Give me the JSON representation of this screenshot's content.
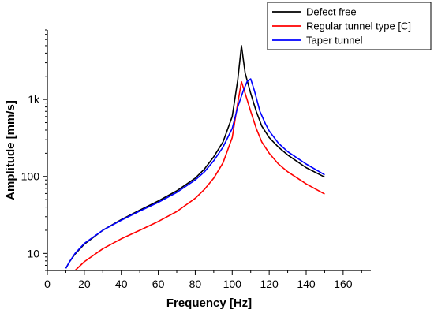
{
  "chart_data": {
    "type": "line",
    "xlabel": "Frequency [Hz]",
    "ylabel": "Amplitude [mm/s]",
    "xlim": [
      0,
      175
    ],
    "ylim": [
      6,
      8000
    ],
    "y_scale": "log",
    "grid": false,
    "legend_position": "top-right",
    "x_ticks": [
      0,
      20,
      40,
      60,
      80,
      100,
      120,
      140,
      160
    ],
    "x_tick_labels": [
      "0",
      "20",
      "40",
      "60",
      "80",
      "100",
      "120",
      "140",
      "160"
    ],
    "y_ticks": [
      10,
      100,
      1000
    ],
    "y_tick_labels": [
      "10",
      "100",
      "1k"
    ],
    "series": [
      {
        "name": "Defect free",
        "color": "#000000",
        "points": [
          [
            10,
            6.4
          ],
          [
            12,
            7.8
          ],
          [
            15,
            9.8
          ],
          [
            20,
            13.2
          ],
          [
            30,
            20
          ],
          [
            40,
            27.5
          ],
          [
            50,
            36.5
          ],
          [
            60,
            48
          ],
          [
            70,
            65
          ],
          [
            80,
            95
          ],
          [
            85,
            125
          ],
          [
            90,
            180
          ],
          [
            95,
            280
          ],
          [
            100,
            600
          ],
          [
            103,
            1800
          ],
          [
            105,
            5000
          ],
          [
            107,
            2200
          ],
          [
            110,
            1200
          ],
          [
            113,
            700
          ],
          [
            116,
            450
          ],
          [
            120,
            320
          ],
          [
            125,
            240
          ],
          [
            130,
            190
          ],
          [
            140,
            130
          ],
          [
            150,
            98
          ]
        ]
      },
      {
        "name": "Regular tunnel type [C]",
        "color": "#ff0000",
        "points": [
          [
            15,
            6
          ],
          [
            20,
            7.8
          ],
          [
            30,
            11.5
          ],
          [
            40,
            15.5
          ],
          [
            50,
            20
          ],
          [
            60,
            26
          ],
          [
            70,
            35
          ],
          [
            80,
            52
          ],
          [
            85,
            68
          ],
          [
            90,
            95
          ],
          [
            95,
            150
          ],
          [
            100,
            320
          ],
          [
            103,
            900
          ],
          [
            105,
            1700
          ],
          [
            107,
            1200
          ],
          [
            110,
            700
          ],
          [
            113,
            420
          ],
          [
            116,
            280
          ],
          [
            120,
            200
          ],
          [
            125,
            145
          ],
          [
            130,
            115
          ],
          [
            140,
            80
          ],
          [
            150,
            59
          ]
        ]
      },
      {
        "name": "Taper tunnel",
        "color": "#0000ff",
        "points": [
          [
            10,
            6.4
          ],
          [
            12,
            7.8
          ],
          [
            15,
            10
          ],
          [
            20,
            13.5
          ],
          [
            30,
            20
          ],
          [
            40,
            27
          ],
          [
            50,
            35.5
          ],
          [
            60,
            46
          ],
          [
            70,
            62
          ],
          [
            80,
            90
          ],
          [
            85,
            115
          ],
          [
            90,
            160
          ],
          [
            95,
            240
          ],
          [
            100,
            420
          ],
          [
            103,
            800
          ],
          [
            106,
            1300
          ],
          [
            108,
            1700
          ],
          [
            110,
            1850
          ],
          [
            112,
            1300
          ],
          [
            115,
            700
          ],
          [
            118,
            480
          ],
          [
            120,
            390
          ],
          [
            125,
            270
          ],
          [
            130,
            210
          ],
          [
            140,
            145
          ],
          [
            150,
            105
          ]
        ]
      }
    ]
  }
}
